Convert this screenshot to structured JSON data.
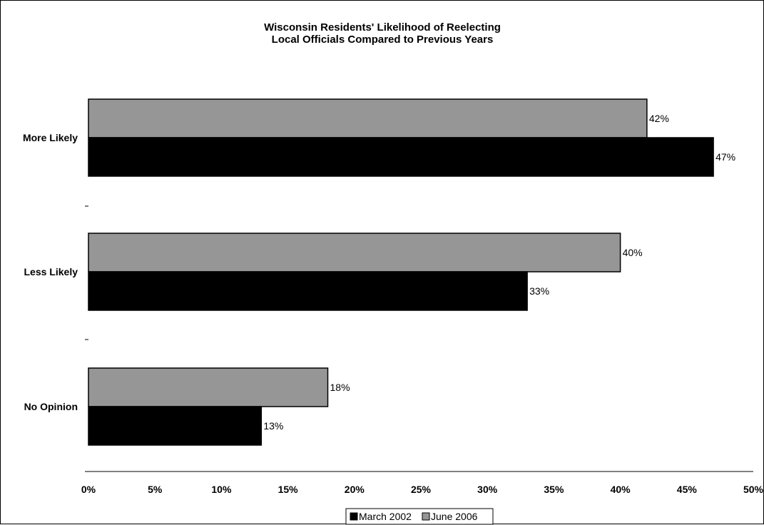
{
  "chart_data": {
    "type": "bar",
    "orientation": "horizontal",
    "title": "Wisconsin Residents' Likelihood of Reelecting Local Officials Compared to Previous Years",
    "title_lines": [
      "Wisconsin Residents' Likelihood of Reelecting",
      "Local Officials Compared to Previous Years"
    ],
    "categories": [
      "More Likely",
      "Less Likely",
      "No Opinion"
    ],
    "series": [
      {
        "name": "March 2002",
        "color": "#000000",
        "values": [
          47,
          33,
          13
        ],
        "labels": [
          "47%",
          "33%",
          "13%"
        ]
      },
      {
        "name": "June 2006",
        "color": "#969696",
        "values": [
          42,
          40,
          18
        ],
        "labels": [
          "42%",
          "40%",
          "18%"
        ]
      }
    ],
    "xlim": [
      0,
      50
    ],
    "xticks": [
      0,
      5,
      10,
      15,
      20,
      25,
      30,
      35,
      40,
      45,
      50
    ],
    "xtick_labels": [
      "0%",
      "5%",
      "10%",
      "15%",
      "20%",
      "25%",
      "30%",
      "35%",
      "40%",
      "45%",
      "50%"
    ],
    "xlabel": "",
    "ylabel": "",
    "grid": false,
    "legend_position": "bottom",
    "legend": [
      "March 2002",
      "June 2006"
    ]
  }
}
